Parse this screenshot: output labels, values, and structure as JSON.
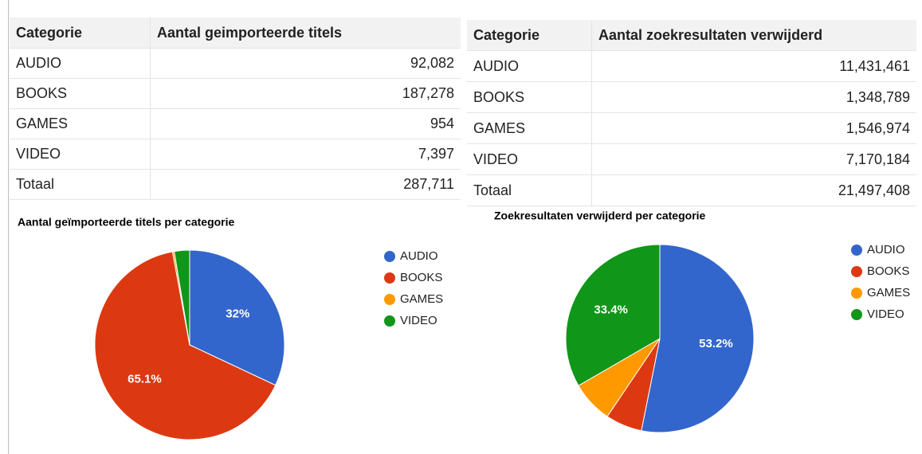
{
  "tables": [
    {
      "columns": [
        "Categorie",
        "Aantal geimporteerde titels"
      ],
      "rows": [
        [
          "AUDIO",
          "92,082"
        ],
        [
          "BOOKS",
          "187,278"
        ],
        [
          "GAMES",
          "954"
        ],
        [
          "VIDEO",
          "7,397"
        ],
        [
          "Totaal",
          "287,711"
        ]
      ]
    },
    {
      "columns": [
        "Categorie",
        "Aantal zoekresultaten verwijderd"
      ],
      "rows": [
        [
          "AUDIO",
          "11,431,461"
        ],
        [
          "BOOKS",
          "1,348,789"
        ],
        [
          "GAMES",
          "1,546,974"
        ],
        [
          "VIDEO",
          "7,170,184"
        ],
        [
          "Totaal",
          "21,497,408"
        ]
      ]
    }
  ],
  "chart_data": [
    {
      "type": "pie",
      "title": "Aantal geïmporteerde titels per categorie",
      "categories": [
        "AUDIO",
        "BOOKS",
        "GAMES",
        "VIDEO"
      ],
      "values": [
        32,
        65.1,
        0.3,
        2.6
      ],
      "value_labels": [
        "32%",
        "65.1%",
        null,
        null
      ],
      "colors": [
        "#3366cc",
        "#dc3912",
        "#ff9900",
        "#109618"
      ],
      "legend": "right"
    },
    {
      "type": "pie",
      "title": "Zoekresultaten verwijderd per categorie",
      "categories": [
        "AUDIO",
        "BOOKS",
        "GAMES",
        "VIDEO"
      ],
      "values": [
        53.2,
        6.3,
        7.2,
        33.4
      ],
      "value_labels": [
        "53.2%",
        null,
        null,
        "33.4%"
      ],
      "colors": [
        "#3366cc",
        "#dc3912",
        "#ff9900",
        "#109618"
      ],
      "legend": "right"
    }
  ]
}
